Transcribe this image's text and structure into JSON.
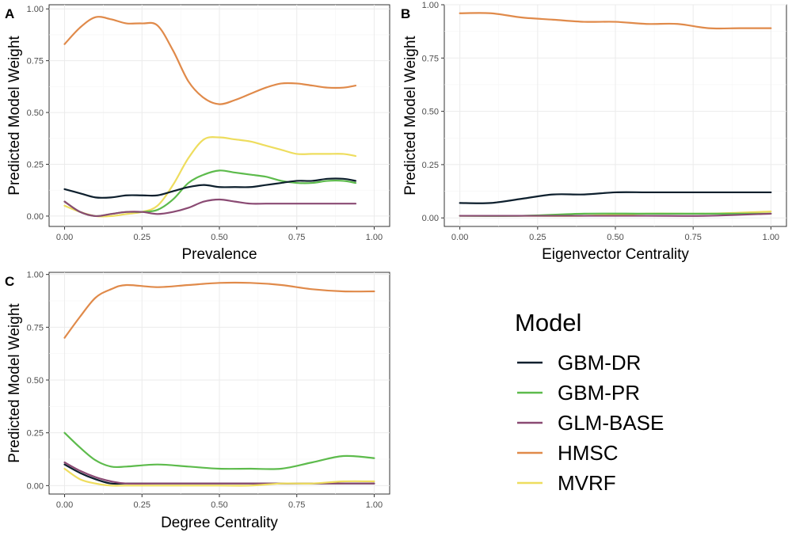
{
  "chart_data": [
    {
      "type": "line",
      "panel": "A",
      "xlabel": "Prevalence",
      "ylabel": "Predicted Model Weight",
      "xlim": [
        -0.05,
        1.05
      ],
      "ylim": [
        -0.05,
        1.02
      ],
      "xticks": [
        0,
        0.25,
        0.5,
        0.75,
        1
      ],
      "xtick_labels": [
        "0.00",
        "0.25",
        "0.50",
        "0.75",
        "1.00"
      ],
      "yticks": [
        0,
        0.25,
        0.5,
        0.75,
        1
      ],
      "ytick_labels": [
        "0.00",
        "0.25",
        "0.50",
        "0.75",
        "1.00"
      ],
      "grid": true,
      "series": [
        {
          "name": "HMSC",
          "x": [
            0,
            0.05,
            0.1,
            0.15,
            0.2,
            0.25,
            0.3,
            0.35,
            0.4,
            0.45,
            0.5,
            0.55,
            0.6,
            0.65,
            0.7,
            0.75,
            0.8,
            0.85,
            0.9,
            0.94
          ],
          "y": [
            0.83,
            0.91,
            0.96,
            0.95,
            0.93,
            0.93,
            0.92,
            0.8,
            0.65,
            0.57,
            0.54,
            0.56,
            0.59,
            0.62,
            0.64,
            0.64,
            0.63,
            0.62,
            0.62,
            0.63
          ]
        },
        {
          "name": "MVRF",
          "x": [
            0,
            0.05,
            0.1,
            0.15,
            0.2,
            0.25,
            0.3,
            0.35,
            0.4,
            0.45,
            0.5,
            0.55,
            0.6,
            0.65,
            0.7,
            0.75,
            0.8,
            0.85,
            0.9,
            0.94
          ],
          "y": [
            0.05,
            0.02,
            0.0,
            0.0,
            0.01,
            0.02,
            0.05,
            0.15,
            0.28,
            0.37,
            0.38,
            0.37,
            0.36,
            0.34,
            0.32,
            0.3,
            0.3,
            0.3,
            0.3,
            0.29
          ]
        },
        {
          "name": "GBM-PR",
          "x": [
            0,
            0.05,
            0.1,
            0.15,
            0.2,
            0.25,
            0.3,
            0.35,
            0.4,
            0.45,
            0.5,
            0.55,
            0.6,
            0.65,
            0.7,
            0.75,
            0.8,
            0.85,
            0.9,
            0.94
          ],
          "y": [
            0.07,
            0.02,
            0.0,
            0.01,
            0.02,
            0.02,
            0.03,
            0.08,
            0.16,
            0.2,
            0.22,
            0.21,
            0.2,
            0.19,
            0.17,
            0.16,
            0.16,
            0.17,
            0.17,
            0.16
          ]
        },
        {
          "name": "GBM-DR",
          "x": [
            0,
            0.05,
            0.1,
            0.15,
            0.2,
            0.25,
            0.3,
            0.35,
            0.4,
            0.45,
            0.5,
            0.55,
            0.6,
            0.65,
            0.7,
            0.75,
            0.8,
            0.85,
            0.9,
            0.94
          ],
          "y": [
            0.13,
            0.11,
            0.09,
            0.09,
            0.1,
            0.1,
            0.1,
            0.12,
            0.14,
            0.15,
            0.14,
            0.14,
            0.14,
            0.15,
            0.16,
            0.17,
            0.17,
            0.18,
            0.18,
            0.17
          ]
        },
        {
          "name": "GLM-BASE",
          "x": [
            0,
            0.05,
            0.1,
            0.15,
            0.2,
            0.25,
            0.3,
            0.35,
            0.4,
            0.45,
            0.5,
            0.55,
            0.6,
            0.65,
            0.7,
            0.75,
            0.8,
            0.85,
            0.9,
            0.94
          ],
          "y": [
            0.07,
            0.02,
            0.0,
            0.01,
            0.02,
            0.02,
            0.01,
            0.02,
            0.04,
            0.07,
            0.08,
            0.07,
            0.06,
            0.06,
            0.06,
            0.06,
            0.06,
            0.06,
            0.06,
            0.06
          ]
        }
      ]
    },
    {
      "type": "line",
      "panel": "B",
      "xlabel": "Eigenvector Centrality",
      "ylabel": "Predicted Model Weight",
      "xlim": [
        -0.05,
        1.05
      ],
      "ylim": [
        -0.04,
        1.0
      ],
      "xticks": [
        0,
        0.25,
        0.5,
        0.75,
        1
      ],
      "xtick_labels": [
        "0.00",
        "0.25",
        "0.50",
        "0.75",
        "1.00"
      ],
      "yticks": [
        0,
        0.25,
        0.5,
        0.75,
        1
      ],
      "ytick_labels": [
        "0.00",
        "0.25",
        "0.50",
        "0.75",
        "1.00"
      ],
      "grid": true,
      "series": [
        {
          "name": "HMSC",
          "x": [
            0,
            0.1,
            0.2,
            0.3,
            0.4,
            0.5,
            0.6,
            0.7,
            0.8,
            0.9,
            1.0
          ],
          "y": [
            0.96,
            0.96,
            0.94,
            0.93,
            0.92,
            0.92,
            0.91,
            0.91,
            0.89,
            0.89,
            0.89
          ]
        },
        {
          "name": "GBM-DR",
          "x": [
            0,
            0.1,
            0.2,
            0.3,
            0.4,
            0.5,
            0.6,
            0.7,
            0.8,
            0.9,
            1.0
          ],
          "y": [
            0.07,
            0.07,
            0.09,
            0.11,
            0.11,
            0.12,
            0.12,
            0.12,
            0.12,
            0.12,
            0.12
          ]
        },
        {
          "name": "MVRF",
          "x": [
            0,
            0.2,
            0.4,
            0.6,
            0.8,
            1.0
          ],
          "y": [
            0.01,
            0.01,
            0.01,
            0.02,
            0.02,
            0.03
          ]
        },
        {
          "name": "GBM-PR",
          "x": [
            0,
            0.2,
            0.4,
            0.6,
            0.8,
            1.0
          ],
          "y": [
            0.01,
            0.01,
            0.02,
            0.02,
            0.02,
            0.02
          ]
        },
        {
          "name": "GLM-BASE",
          "x": [
            0,
            0.2,
            0.4,
            0.6,
            0.8,
            1.0
          ],
          "y": [
            0.01,
            0.01,
            0.01,
            0.01,
            0.01,
            0.02
          ]
        }
      ]
    },
    {
      "type": "line",
      "panel": "C",
      "xlabel": "Degree Centrality",
      "ylabel": "Predicted Model Weight",
      "xlim": [
        -0.05,
        1.05
      ],
      "ylim": [
        -0.04,
        1.01
      ],
      "xticks": [
        0,
        0.25,
        0.5,
        0.75,
        1
      ],
      "xtick_labels": [
        "0.00",
        "0.25",
        "0.50",
        "0.75",
        "1.00"
      ],
      "yticks": [
        0,
        0.25,
        0.5,
        0.75,
        1
      ],
      "ytick_labels": [
        "0.00",
        "0.25",
        "0.50",
        "0.75",
        "1.00"
      ],
      "grid": true,
      "series": [
        {
          "name": "HMSC",
          "x": [
            0,
            0.05,
            0.1,
            0.15,
            0.2,
            0.3,
            0.4,
            0.5,
            0.6,
            0.7,
            0.8,
            0.9,
            1.0
          ],
          "y": [
            0.7,
            0.8,
            0.89,
            0.93,
            0.95,
            0.94,
            0.95,
            0.96,
            0.96,
            0.95,
            0.93,
            0.92,
            0.92
          ]
        },
        {
          "name": "GBM-PR",
          "x": [
            0,
            0.05,
            0.1,
            0.15,
            0.2,
            0.3,
            0.4,
            0.5,
            0.6,
            0.7,
            0.8,
            0.9,
            1.0
          ],
          "y": [
            0.25,
            0.18,
            0.12,
            0.09,
            0.09,
            0.1,
            0.09,
            0.08,
            0.08,
            0.08,
            0.11,
            0.14,
            0.13
          ]
        },
        {
          "name": "GBM-DR",
          "x": [
            0,
            0.05,
            0.1,
            0.15,
            0.2,
            0.3,
            0.4,
            0.5,
            0.6,
            0.7,
            0.8,
            0.9,
            1.0
          ],
          "y": [
            0.1,
            0.06,
            0.03,
            0.01,
            0.01,
            0.01,
            0.01,
            0.01,
            0.01,
            0.01,
            0.01,
            0.01,
            0.01
          ]
        },
        {
          "name": "GLM-BASE",
          "x": [
            0,
            0.05,
            0.1,
            0.15,
            0.2,
            0.3,
            0.4,
            0.5,
            0.6,
            0.7,
            0.8,
            0.9,
            1.0
          ],
          "y": [
            0.11,
            0.07,
            0.04,
            0.02,
            0.01,
            0.01,
            0.01,
            0.01,
            0.01,
            0.01,
            0.01,
            0.01,
            0.01
          ]
        },
        {
          "name": "MVRF",
          "x": [
            0,
            0.05,
            0.1,
            0.15,
            0.2,
            0.3,
            0.4,
            0.5,
            0.6,
            0.7,
            0.8,
            0.9,
            1.0
          ],
          "y": [
            0.08,
            0.03,
            0.01,
            0.0,
            0.0,
            0.0,
            0.0,
            0.0,
            0.0,
            0.01,
            0.01,
            0.02,
            0.02
          ]
        }
      ]
    }
  ],
  "legend": {
    "title": "Model",
    "entries": [
      {
        "name": "GBM-DR",
        "color": "#0d1f2d"
      },
      {
        "name": "GBM-PR",
        "color": "#5dbb4c"
      },
      {
        "name": "GLM-BASE",
        "color": "#8a4a73"
      },
      {
        "name": "HMSC",
        "color": "#e08a4a"
      },
      {
        "name": "MVRF",
        "color": "#eedd5e"
      }
    ]
  }
}
